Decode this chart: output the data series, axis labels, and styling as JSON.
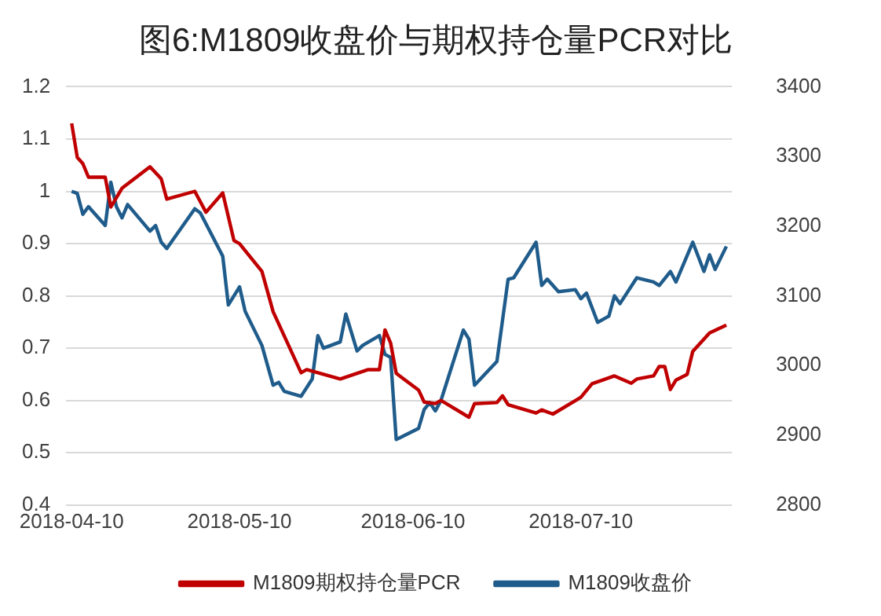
{
  "chart_data": {
    "type": "line",
    "title": "图6:M1809收盘价与期权持仓量PCR对比",
    "xlim": [
      "2018-04-09",
      "2018-08-06"
    ],
    "xticks": [
      "2018-04-10",
      "2018-05-10",
      "2018-06-10",
      "2018-07-10"
    ],
    "ylim": [
      0.4,
      1.2
    ],
    "yticks": [
      0.4,
      0.5,
      0.6,
      0.7,
      0.8,
      0.9,
      1,
      1.1,
      1.2
    ],
    "y2lim": [
      2800,
      3400
    ],
    "y2ticks": [
      2800,
      2900,
      3000,
      3100,
      3200,
      3300,
      3400
    ],
    "grid": "y",
    "legend": "bottom",
    "marker": "none",
    "line_style": "solid",
    "series": [
      {
        "name": "M1809期权持仓量PCR",
        "color": "#c00000",
        "axis": "y",
        "x": [
          "2018-04-10",
          "2018-04-11",
          "2018-04-12",
          "2018-04-13",
          "2018-04-16",
          "2018-04-17",
          "2018-04-19",
          "2018-04-24",
          "2018-04-26",
          "2018-04-27",
          "2018-05-02",
          "2018-05-04",
          "2018-05-07",
          "2018-05-09",
          "2018-05-10",
          "2018-05-14",
          "2018-05-16",
          "2018-05-21",
          "2018-05-22",
          "2018-05-28",
          "2018-06-02",
          "2018-06-04",
          "2018-06-05",
          "2018-06-06",
          "2018-06-07",
          "2018-06-11",
          "2018-06-12",
          "2018-06-14",
          "2018-06-15",
          "2018-06-20",
          "2018-06-21",
          "2018-06-25",
          "2018-06-26",
          "2018-06-27",
          "2018-07-02",
          "2018-07-03",
          "2018-07-05",
          "2018-07-10",
          "2018-07-12",
          "2018-07-16",
          "2018-07-19",
          "2018-07-20",
          "2018-07-23",
          "2018-07-24",
          "2018-07-25",
          "2018-07-26",
          "2018-07-27",
          "2018-07-29",
          "2018-07-30",
          "2018-08-02",
          "2018-08-05"
        ],
        "values": [
          1.13,
          1.065,
          1.053,
          1.027,
          1.027,
          0.97,
          1.006,
          1.047,
          1.024,
          0.985,
          1.0,
          0.96,
          0.997,
          0.906,
          0.9,
          0.847,
          0.77,
          0.653,
          0.659,
          0.641,
          0.659,
          0.659,
          0.735,
          0.71,
          0.652,
          0.62,
          0.597,
          0.594,
          0.6,
          0.568,
          0.594,
          0.596,
          0.609,
          0.592,
          0.576,
          0.582,
          0.574,
          0.606,
          0.632,
          0.647,
          0.633,
          0.641,
          0.647,
          0.665,
          0.665,
          0.621,
          0.639,
          0.65,
          0.694,
          0.729,
          0.744
        ]
      },
      {
        "name": "M1809收盘价",
        "color": "#1f5c8b",
        "axis": "y2",
        "x": [
          "2018-04-10",
          "2018-04-11",
          "2018-04-12",
          "2018-04-13",
          "2018-04-16",
          "2018-04-17",
          "2018-04-18",
          "2018-04-19",
          "2018-04-20",
          "2018-04-24",
          "2018-04-25",
          "2018-04-26",
          "2018-04-27",
          "2018-05-02",
          "2018-05-03",
          "2018-05-07",
          "2018-05-08",
          "2018-05-10",
          "2018-05-11",
          "2018-05-14",
          "2018-05-16",
          "2018-05-17",
          "2018-05-18",
          "2018-05-21",
          "2018-05-23",
          "2018-05-24",
          "2018-05-25",
          "2018-05-28",
          "2018-05-29",
          "2018-05-31",
          "2018-06-01",
          "2018-06-04",
          "2018-06-05",
          "2018-06-06",
          "2018-06-07",
          "2018-06-11",
          "2018-06-12",
          "2018-06-13",
          "2018-06-14",
          "2018-06-15",
          "2018-06-19",
          "2018-06-20",
          "2018-06-21",
          "2018-06-25",
          "2018-06-27",
          "2018-06-28",
          "2018-07-02",
          "2018-07-03",
          "2018-07-04",
          "2018-07-06",
          "2018-07-09",
          "2018-07-10",
          "2018-07-11",
          "2018-07-13",
          "2018-07-15",
          "2018-07-16",
          "2018-07-17",
          "2018-07-20",
          "2018-07-23",
          "2018-07-24",
          "2018-07-26",
          "2018-07-27",
          "2018-07-30",
          "2018-08-01",
          "2018-08-02",
          "2018-08-03",
          "2018-08-05"
        ],
        "values": [
          3250,
          3247,
          3217,
          3228,
          3201,
          3263,
          3228,
          3212,
          3231,
          3193,
          3201,
          3177,
          3168,
          3225,
          3219,
          3157,
          3087,
          3113,
          3078,
          3029,
          2972,
          2976,
          2963,
          2956,
          2981,
          3043,
          3025,
          3034,
          3074,
          3021,
          3029,
          3043,
          3016,
          3012,
          2894,
          2910,
          2937,
          2947,
          2935,
          2950,
          3051,
          3038,
          2972,
          3006,
          3124,
          3126,
          3177,
          3115,
          3124,
          3106,
          3109,
          3096,
          3104,
          3062,
          3071,
          3100,
          3089,
          3126,
          3120,
          3115,
          3135,
          3120,
          3177,
          3135,
          3159,
          3138,
          3171
        ]
      }
    ]
  }
}
